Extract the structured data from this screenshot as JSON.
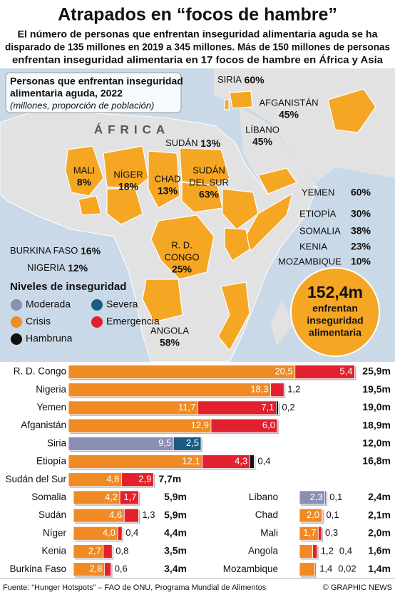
{
  "title": "Atrapados en “focos de hambre”",
  "subtitle_lines": [
    "El número de personas que enfrentan inseguridad alimentaria aguda se ha",
    "disparado de 135 millones en 2019 a 345 millones. Más de 150 millones de personas",
    "enfrentan inseguridad alimentaria en 17 focos de hambre en África y Asia"
  ],
  "map": {
    "box_title_lines": [
      "Personas que enfrentan inseguridad",
      "alimentaria aguda, 2022"
    ],
    "box_subtitle": "(millones, proporción de población)",
    "region_label": "ÁFRICA",
    "countries": [
      {
        "name_lines": [
          "SIRIA"
        ],
        "share": 60,
        "share_label": "60%"
      },
      {
        "name_lines": [
          "AFGANISTÁN"
        ],
        "share": 45,
        "share_label": "45%"
      },
      {
        "name_lines": [
          "LÍBANO"
        ],
        "share": 45,
        "share_label": "45%"
      },
      {
        "name_lines": [
          "SUDÁN"
        ],
        "share": 13,
        "share_label": "13%"
      },
      {
        "name_lines": [
          "MALI"
        ],
        "share": 8,
        "share_label": "8%"
      },
      {
        "name_lines": [
          "NÍGER"
        ],
        "share": 18,
        "share_label": "18%"
      },
      {
        "name_lines": [
          "CHAD"
        ],
        "share": 13,
        "share_label": "13%"
      },
      {
        "name_lines": [
          "SUDÁN",
          "DEL SUR"
        ],
        "share": 63,
        "share_label": "63%"
      },
      {
        "name_lines": [
          "YEMEN"
        ],
        "share": 60,
        "share_label": "60%"
      },
      {
        "name_lines": [
          "ETIOPÍA"
        ],
        "share": 30,
        "share_label": "30%"
      },
      {
        "name_lines": [
          "SOMALIA"
        ],
        "share": 38,
        "share_label": "38%"
      },
      {
        "name_lines": [
          "KENIA"
        ],
        "share": 23,
        "share_label": "23%"
      },
      {
        "name_lines": [
          "MOZAMBIQUE"
        ],
        "share": 10,
        "share_label": "10%"
      },
      {
        "name_lines": [
          "BURKINA FASO"
        ],
        "share": 16,
        "share_label": "16%"
      },
      {
        "name_lines": [
          "NIGERIA"
        ],
        "share": 12,
        "share_label": "12%"
      },
      {
        "name_lines": [
          "R. D.",
          "CONGO"
        ],
        "share": 25,
        "share_label": "25%"
      },
      {
        "name_lines": [
          "ANGOLA"
        ],
        "share": 58,
        "share_label": "58%"
      }
    ]
  },
  "callout": {
    "total": 152.4,
    "total_label": "152,4m",
    "text_lines": [
      "enfrentan",
      "inseguridad",
      "alimentaria"
    ]
  },
  "chart_data": {
    "type": "bar",
    "stacked": true,
    "orientation": "horizontal",
    "legend_title": "Niveles de inseguridad",
    "categories": [
      "R. D. Congo",
      "Nigeria",
      "Yemen",
      "Afganistán",
      "Siria",
      "Etiopía",
      "Sudán del Sur",
      "Somalia",
      "Sudán",
      "Níger",
      "Kenia",
      "Burkina Faso",
      "Líbano",
      "Chad",
      "Mali",
      "Angola",
      "Mozambique"
    ],
    "series": [
      {
        "name": "Moderada",
        "color": "#8a8fb3",
        "values": [
          null,
          null,
          null,
          null,
          9.5,
          null,
          null,
          null,
          null,
          null,
          null,
          null,
          2.3,
          null,
          null,
          null,
          null
        ],
        "value_labels": [
          null,
          null,
          null,
          null,
          "9,5",
          null,
          null,
          null,
          null,
          null,
          null,
          null,
          "2,3",
          null,
          null,
          null,
          null
        ]
      },
      {
        "name": "Severa",
        "color": "#1c5b80",
        "values": [
          null,
          null,
          null,
          null,
          2.5,
          null,
          null,
          null,
          null,
          null,
          null,
          null,
          0.1,
          null,
          null,
          null,
          null
        ],
        "value_labels": [
          null,
          null,
          null,
          null,
          "2,5",
          null,
          null,
          null,
          null,
          null,
          null,
          null,
          "0,1",
          null,
          null,
          null,
          null
        ]
      },
      {
        "name": "Crisis",
        "color": "#f08a24",
        "values": [
          20.5,
          18.3,
          11.7,
          12.9,
          null,
          12.1,
          4.8,
          4.2,
          4.6,
          4.0,
          2.7,
          2.8,
          null,
          2.0,
          1.7,
          1.2,
          1.4
        ],
        "value_labels": [
          "20,5",
          "18,3",
          "11,7",
          "12,9",
          null,
          "12,1",
          "4,8",
          "4,2",
          "4,6",
          "4,0",
          "2,7",
          "2,8",
          null,
          "2,0",
          "1,7",
          "1,2",
          "1,4"
        ]
      },
      {
        "name": "Emergencia",
        "color": "#e3202e",
        "values": [
          5.4,
          1.2,
          7.1,
          6.0,
          null,
          4.3,
          2.9,
          1.7,
          1.3,
          0.4,
          0.8,
          0.6,
          null,
          0.1,
          0.3,
          0.4,
          0.02
        ],
        "value_labels": [
          "5,4",
          "1,2",
          "7,1",
          "6,0",
          null,
          "4,3",
          "2,9",
          "1,7",
          "1,3",
          "0,4",
          "0,8",
          "0,6",
          null,
          "0,1",
          "0,3",
          "0,4",
          "0,02"
        ]
      },
      {
        "name": "Hambruna",
        "color": "#111111",
        "values": [
          null,
          null,
          0.2,
          null,
          null,
          0.4,
          null,
          null,
          null,
          null,
          null,
          null,
          null,
          null,
          null,
          null,
          null
        ],
        "value_labels": [
          null,
          null,
          "0,2",
          null,
          null,
          "0,4",
          null,
          null,
          null,
          null,
          null,
          null,
          null,
          null,
          null,
          null,
          null
        ]
      }
    ],
    "totals": [
      25.9,
      19.5,
      19.0,
      18.9,
      12.0,
      16.8,
      7.7,
      5.9,
      5.9,
      4.4,
      3.5,
      3.4,
      2.4,
      2.1,
      2.0,
      1.6,
      1.4
    ],
    "total_labels": [
      "25,9m",
      "19,5m",
      "19,0m",
      "18,9m",
      "12,0m",
      "16,8m",
      "7,7m",
      "5,9m",
      "5,9m",
      "4,4m",
      "3,5m",
      "3,4m",
      "2,4m",
      "2,1m",
      "2,0m",
      "1,6m",
      "1,4m"
    ]
  },
  "source": "Fuente: “Hunger Hotspots” – FAO de ONU, Programa Mundial de Alimentos",
  "credit": "© GRAPHIC NEWS"
}
